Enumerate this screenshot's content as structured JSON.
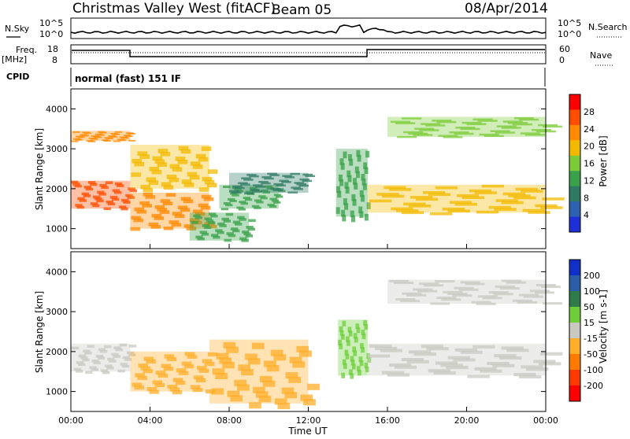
{
  "header": {
    "radar": "Christmas Valley West (fitACF)",
    "beam": "Beam 05",
    "date": "08/Apr/2014"
  },
  "noise_panel": {
    "left_label": "N.Sky",
    "right_label": "N.Search",
    "left_ticks": [
      "10^5",
      "10^0"
    ],
    "right_ticks": [
      "10^5",
      "10^0"
    ]
  },
  "freq_panel": {
    "left_label_1": "Freq.",
    "left_label_2": "[MHz]",
    "right_label": "Nave",
    "left_ticks": [
      "18",
      "8"
    ],
    "right_ticks": [
      "60",
      "0"
    ]
  },
  "cpid": {
    "label": "CPID",
    "program": "normal (fast) 151 IF"
  },
  "colors": {
    "power_scale": [
      "#1e2fd8",
      "#2d62b0",
      "#2f7a63",
      "#39a14a",
      "#7ccc3a",
      "#f3b900",
      "#ff8a00",
      "#ff4e00",
      "#ff0000"
    ],
    "velocity_scale": [
      "#1030c8",
      "#2b5da8",
      "#2f7c4a",
      "#6dce3a",
      "#c9c9c2",
      "#ffae2a",
      "#ff7b00",
      "#ff3a00",
      "#ff0000"
    ]
  },
  "chart_data": [
    {
      "type": "heatmap",
      "panel": "power",
      "x_label": "",
      "y_label": "Slant Range [km]",
      "y_ticks": [
        "1000",
        "2000",
        "3000",
        "4000"
      ],
      "ylim": [
        500,
        4500
      ],
      "xlim": [
        0,
        24
      ],
      "colorbar": {
        "label": "Power [dB]",
        "ticks": [
          "4",
          "8",
          "12",
          "16",
          "20",
          "24",
          "28"
        ],
        "range": [
          0,
          32
        ]
      },
      "series": [
        {
          "values": [
            [
              0,
              3,
              1500,
              2200,
              26
            ],
            [
              0,
              3,
              3200,
              3450,
              22
            ],
            [
              3,
              7,
              1000,
              1900,
              24
            ],
            [
              3,
              7,
              2000,
              3100,
              20
            ],
            [
              6,
              9,
              700,
              1400,
              12
            ],
            [
              7.5,
              10.5,
              1500,
              2100,
              10
            ],
            [
              8,
              12,
              1900,
              2400,
              6
            ],
            [
              13.4,
              15,
              1300,
              3000,
              10
            ],
            [
              15,
              24,
              1400,
              2100,
              20
            ],
            [
              16,
              24,
              3300,
              3800,
              16
            ]
          ]
        }
      ]
    },
    {
      "type": "heatmap",
      "panel": "velocity",
      "x_label": "Time UT",
      "y_label": "Slant Range [km]",
      "y_ticks": [
        "1000",
        "2000",
        "3000",
        "4000"
      ],
      "ylim": [
        500,
        4500
      ],
      "xlim": [
        0,
        24
      ],
      "x_ticks": [
        "00:00",
        "04:00",
        "08:00",
        "12:00",
        "16:00",
        "20:00",
        "00:00"
      ],
      "colorbar": {
        "label": "Velocity [m s-1]",
        "ticks": [
          "200",
          "100",
          "50",
          "15",
          "-15",
          "-50",
          "-100",
          "-200"
        ],
        "range": [
          -250,
          250
        ]
      },
      "series": [
        {
          "values": [
            [
              0,
              3,
              1500,
              2200,
              0
            ],
            [
              3,
              7,
              1000,
              2000,
              -40
            ],
            [
              7,
              12,
              700,
              2300,
              -60
            ],
            [
              13.5,
              15,
              1400,
              2800,
              40
            ],
            [
              15,
              24,
              1400,
              2200,
              0
            ],
            [
              16,
              24,
              3200,
              3800,
              0
            ]
          ]
        }
      ]
    }
  ]
}
